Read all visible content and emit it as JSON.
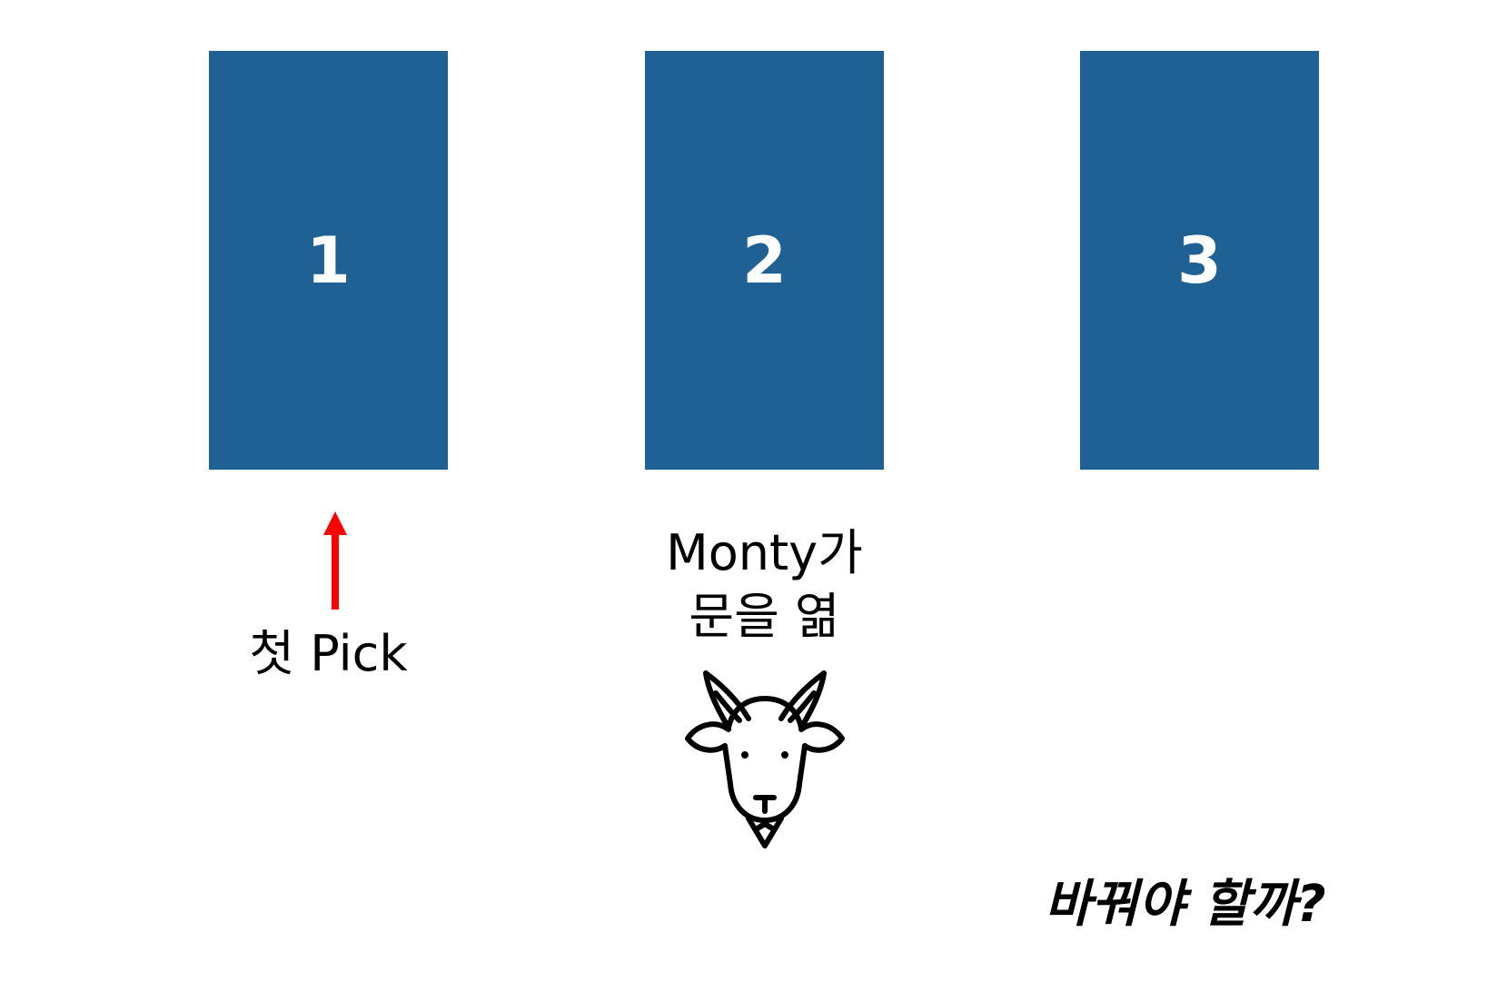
{
  "doors": [
    {
      "label": "1"
    },
    {
      "label": "2"
    },
    {
      "label": "3"
    }
  ],
  "first_pick": {
    "label": "첫 Pick",
    "arrow_color": "#ff0000"
  },
  "monty": {
    "line1": "Monty가",
    "line2": "문을 엶"
  },
  "question": "바꿔야 할까?",
  "colors": {
    "door": "#1f6194",
    "door_text": "#ffffff",
    "text": "#000000"
  },
  "icons": {
    "goat": "goat-icon",
    "arrow": "up-arrow-icon"
  }
}
